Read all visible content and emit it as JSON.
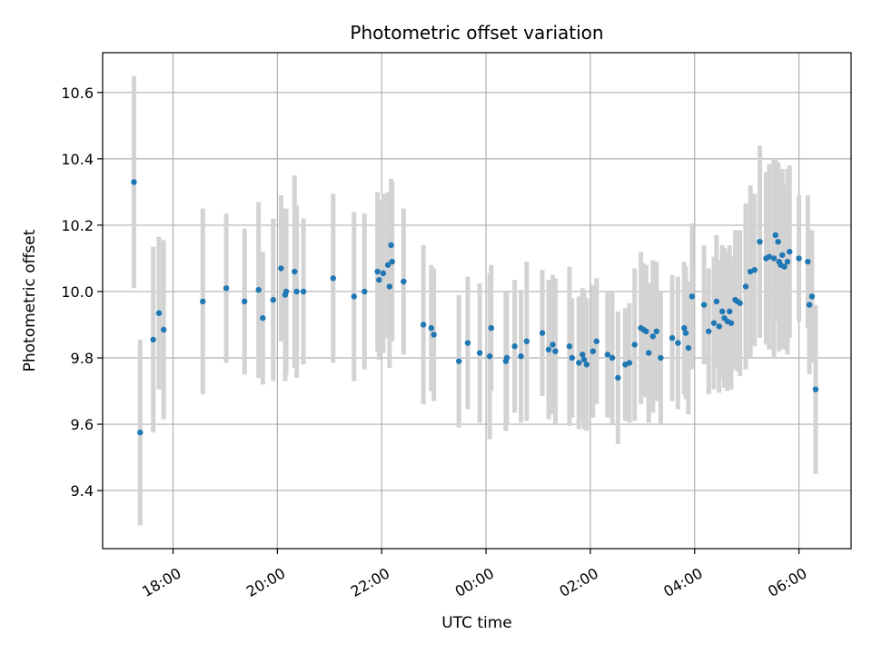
{
  "chart_data": {
    "type": "scatter",
    "title": "Photometric offset variation",
    "xlabel": "UTC time",
    "ylabel": "Photometric offset",
    "grid": true,
    "x_axis": {
      "unit": "hours from 00:00 UTC",
      "range": [
        -7.35,
        7.0
      ],
      "ticks": [
        {
          "value": -6,
          "label": "18:00"
        },
        {
          "value": -4,
          "label": "20:00"
        },
        {
          "value": -2,
          "label": "22:00"
        },
        {
          "value": 0,
          "label": "00:00"
        },
        {
          "value": 2,
          "label": "02:00"
        },
        {
          "value": 4,
          "label": "04:00"
        },
        {
          "value": 6,
          "label": "06:00"
        }
      ]
    },
    "y_axis": {
      "range": [
        9.225,
        10.72
      ],
      "ticks": [
        {
          "value": 9.4,
          "label": "9.4"
        },
        {
          "value": 9.6,
          "label": "9.6"
        },
        {
          "value": 9.8,
          "label": "9.8"
        },
        {
          "value": 10.0,
          "label": "10.0"
        },
        {
          "value": 10.2,
          "label": "10.2"
        },
        {
          "value": 10.4,
          "label": "10.4"
        },
        {
          "value": 10.6,
          "label": "10.6"
        }
      ]
    },
    "colors": {
      "marker": "#1f77b4",
      "errorbar": "#d3d3d3",
      "grid": "#b0b0b0"
    },
    "points": [
      [
        -6.75,
        10.33,
        0.32
      ],
      [
        -6.63,
        9.575,
        0.28
      ],
      [
        -6.38,
        9.855,
        0.28
      ],
      [
        -6.27,
        9.935,
        0.23
      ],
      [
        -6.18,
        9.885,
        0.27
      ],
      [
        -5.43,
        9.97,
        0.28
      ],
      [
        -4.98,
        10.01,
        0.225
      ],
      [
        -4.63,
        9.97,
        0.22
      ],
      [
        -4.36,
        10.005,
        0.265
      ],
      [
        -4.28,
        9.92,
        0.2
      ],
      [
        -4.08,
        9.975,
        0.245
      ],
      [
        -3.93,
        10.07,
        0.22
      ],
      [
        -3.85,
        9.99,
        0.26
      ],
      [
        -3.83,
        10.0,
        0.25
      ],
      [
        -3.67,
        10.06,
        0.29
      ],
      [
        -3.63,
        10.0,
        0.26
      ],
      [
        -3.5,
        10.0,
        0.22
      ],
      [
        -2.93,
        10.04,
        0.255
      ],
      [
        -2.53,
        9.985,
        0.255
      ],
      [
        -2.33,
        10.0,
        0.235
      ],
      [
        -2.08,
        10.06,
        0.24
      ],
      [
        -2.05,
        10.035,
        0.24
      ],
      [
        -1.97,
        10.055,
        0.24
      ],
      [
        -1.88,
        10.08,
        0.22
      ],
      [
        -1.85,
        10.015,
        0.245
      ],
      [
        -1.82,
        10.14,
        0.2
      ],
      [
        -1.8,
        10.09,
        0.24
      ],
      [
        -1.58,
        10.03,
        0.22
      ],
      [
        -1.2,
        9.9,
        0.24
      ],
      [
        -1.05,
        9.89,
        0.19
      ],
      [
        -1.0,
        9.87,
        0.2
      ],
      [
        -0.52,
        9.79,
        0.2
      ],
      [
        -0.35,
        9.845,
        0.2
      ],
      [
        -0.12,
        9.815,
        0.21
      ],
      [
        0.07,
        9.805,
        0.25
      ],
      [
        0.1,
        9.89,
        0.19
      ],
      [
        0.38,
        9.79,
        0.21
      ],
      [
        0.4,
        9.8,
        0.2
      ],
      [
        0.55,
        9.835,
        0.2
      ],
      [
        0.67,
        9.805,
        0.2
      ],
      [
        0.78,
        9.85,
        0.24
      ],
      [
        1.08,
        9.875,
        0.19
      ],
      [
        1.2,
        9.825,
        0.21
      ],
      [
        1.28,
        9.84,
        0.21
      ],
      [
        1.33,
        9.82,
        0.22
      ],
      [
        1.6,
        9.835,
        0.24
      ],
      [
        1.65,
        9.8,
        0.18
      ],
      [
        1.78,
        9.785,
        0.2
      ],
      [
        1.85,
        9.81,
        0.2
      ],
      [
        1.88,
        9.795,
        0.21
      ],
      [
        1.93,
        9.78,
        0.2
      ],
      [
        2.05,
        9.82,
        0.2
      ],
      [
        2.12,
        9.85,
        0.19
      ],
      [
        2.33,
        9.81,
        0.19
      ],
      [
        2.42,
        9.8,
        0.2
      ],
      [
        2.53,
        9.74,
        0.2
      ],
      [
        2.67,
        9.78,
        0.17
      ],
      [
        2.75,
        9.785,
        0.18
      ],
      [
        2.85,
        9.84,
        0.23
      ],
      [
        2.97,
        9.89,
        0.23
      ],
      [
        3.02,
        9.885,
        0.2
      ],
      [
        3.07,
        9.88,
        0.2
      ],
      [
        3.12,
        9.815,
        0.21
      ],
      [
        3.2,
        9.865,
        0.23
      ],
      [
        3.27,
        9.88,
        0.21
      ],
      [
        3.35,
        9.8,
        0.2
      ],
      [
        3.57,
        9.86,
        0.19
      ],
      [
        3.68,
        9.845,
        0.2
      ],
      [
        3.8,
        9.89,
        0.2
      ],
      [
        3.83,
        9.875,
        0.2
      ],
      [
        3.88,
        9.83,
        0.2
      ],
      [
        3.95,
        9.985,
        0.22
      ],
      [
        4.18,
        9.96,
        0.18
      ],
      [
        4.27,
        9.88,
        0.19
      ],
      [
        4.37,
        9.905,
        0.2
      ],
      [
        4.42,
        9.97,
        0.2
      ],
      [
        4.47,
        9.895,
        0.2
      ],
      [
        4.53,
        9.94,
        0.2
      ],
      [
        4.57,
        9.92,
        0.21
      ],
      [
        4.63,
        9.91,
        0.21
      ],
      [
        4.67,
        9.94,
        0.2
      ],
      [
        4.7,
        9.905,
        0.2
      ],
      [
        4.78,
        9.975,
        0.21
      ],
      [
        4.82,
        9.97,
        0.21
      ],
      [
        4.87,
        9.965,
        0.22
      ],
      [
        4.98,
        10.015,
        0.25
      ],
      [
        5.07,
        10.06,
        0.26
      ],
      [
        5.15,
        10.065,
        0.23
      ],
      [
        5.25,
        10.15,
        0.29
      ],
      [
        5.37,
        10.1,
        0.26
      ],
      [
        5.43,
        10.105,
        0.28
      ],
      [
        5.52,
        10.1,
        0.3
      ],
      [
        5.55,
        10.17,
        0.23
      ],
      [
        5.6,
        10.15,
        0.24
      ],
      [
        5.62,
        10.09,
        0.27
      ],
      [
        5.65,
        10.08,
        0.25
      ],
      [
        5.68,
        10.11,
        0.26
      ],
      [
        5.72,
        10.075,
        0.25
      ],
      [
        5.78,
        10.09,
        0.28
      ],
      [
        5.82,
        10.12,
        0.26
      ],
      [
        6.0,
        10.1,
        0.19
      ],
      [
        6.17,
        10.09,
        0.2
      ],
      [
        6.2,
        9.96,
        0.21
      ],
      [
        6.25,
        9.985,
        0.2
      ],
      [
        6.32,
        9.705,
        0.255
      ]
    ]
  }
}
